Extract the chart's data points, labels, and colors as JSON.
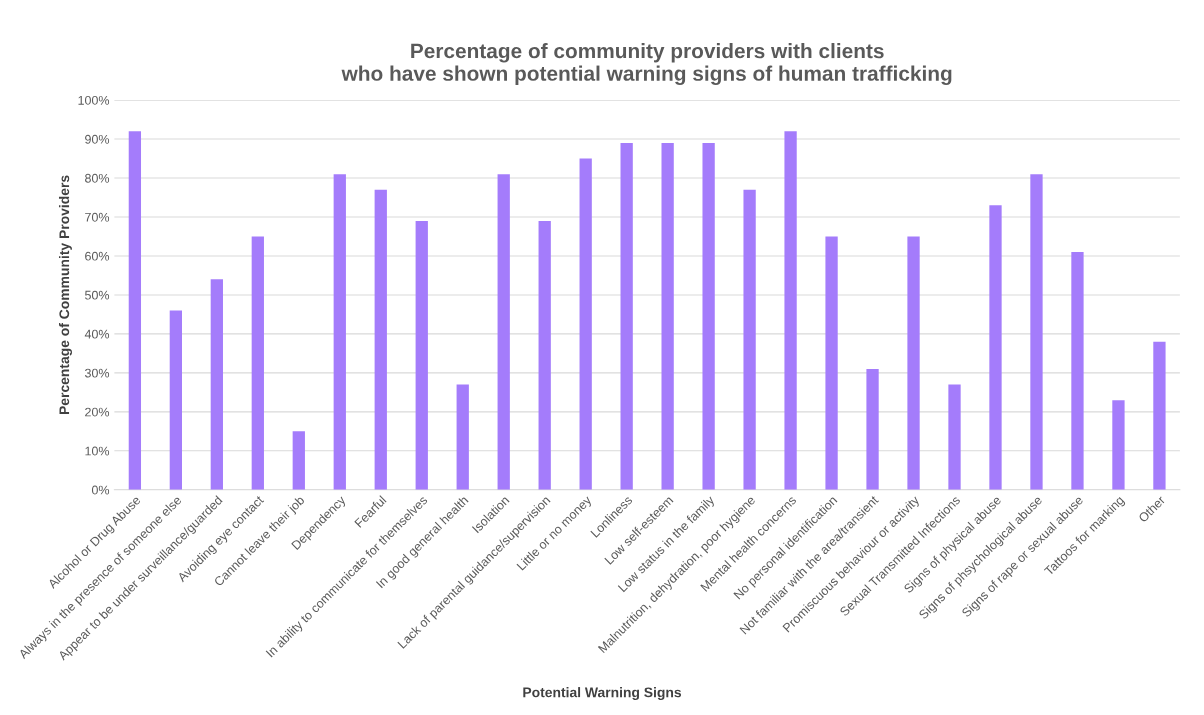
{
  "chart_data": {
    "type": "bar",
    "title": "Percentage of community providers with clients\nwho have shown potential warning signs of human trafficking",
    "xlabel": "Potential Warning Signs",
    "ylabel": "Percentage of Community Providers",
    "categories": [
      "Alcohol or Drug Abuse",
      "Always in the presence of someone else",
      "Appear to be under surveillance/guarded",
      "Avoiding eye contact",
      "Cannot leave their job",
      "Dependency",
      "Fearful",
      "In ability to communicate for themselves",
      "In good general health",
      "Isolation",
      "Lack of parental guidance/supervision",
      "Little or no money",
      "Lonliness",
      "Low self-esteem",
      "Low status in the family",
      "Malnutrition, dehydration, poor hygiene",
      "Mental health concerns",
      "No personal identification",
      "Not familiar with the area/transient",
      "Promiscuous behaviour or activity",
      "Sexual Transmitted Infections",
      "Signs of physical abuse",
      "Signs of phsychological abuse",
      "Signs of rape or sexual abuse",
      "Tattoos for marking",
      "Other"
    ],
    "values": [
      92,
      46,
      54,
      65,
      15,
      81,
      77,
      69,
      27,
      81,
      69,
      85,
      89,
      89,
      89,
      77,
      92,
      65,
      31,
      65,
      27,
      73,
      81,
      61,
      23,
      38
    ],
    "color": "#a47cfb",
    "ylim": [
      0,
      100
    ],
    "yticks": [
      {
        "value": 0,
        "label": "0%"
      },
      {
        "value": 10,
        "label": "10%"
      },
      {
        "value": 20,
        "label": "20%"
      },
      {
        "value": 30,
        "label": "30%"
      },
      {
        "value": 40,
        "label": "40%"
      },
      {
        "value": 50,
        "label": "50%"
      },
      {
        "value": 60,
        "label": "60%"
      },
      {
        "value": 70,
        "label": "70%"
      },
      {
        "value": 80,
        "label": "80%"
      },
      {
        "value": 90,
        "label": "90%"
      },
      {
        "value": 100,
        "label": "100%"
      }
    ],
    "grid": "y"
  }
}
